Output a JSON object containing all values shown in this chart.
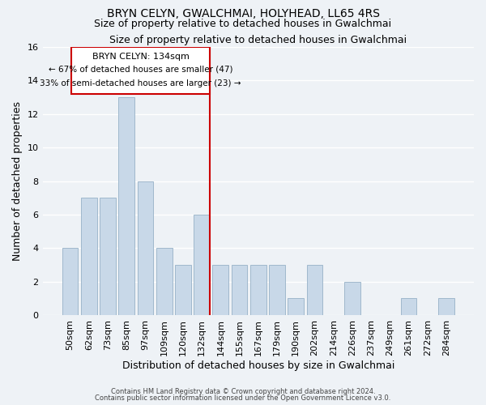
{
  "title": "BRYN CELYN, GWALCHMAI, HOLYHEAD, LL65 4RS",
  "subtitle": "Size of property relative to detached houses in Gwalchmai",
  "xlabel": "Distribution of detached houses by size in Gwalchmai",
  "ylabel": "Number of detached properties",
  "bar_labels": [
    "50sqm",
    "62sqm",
    "73sqm",
    "85sqm",
    "97sqm",
    "109sqm",
    "120sqm",
    "132sqm",
    "144sqm",
    "155sqm",
    "167sqm",
    "179sqm",
    "190sqm",
    "202sqm",
    "214sqm",
    "226sqm",
    "237sqm",
    "249sqm",
    "261sqm",
    "272sqm",
    "284sqm"
  ],
  "bar_values": [
    4,
    7,
    7,
    13,
    8,
    4,
    3,
    6,
    3,
    3,
    3,
    3,
    1,
    3,
    0,
    2,
    0,
    0,
    1,
    0,
    1
  ],
  "bar_color": "#c8d8e8",
  "bar_edge_color": "#a0b8cc",
  "reference_line_index": 7,
  "reference_line_color": "#cc0000",
  "annotation_title": "BRYN CELYN: 134sqm",
  "annotation_line1": "← 67% of detached houses are smaller (47)",
  "annotation_line2": "33% of semi-detached houses are larger (23) →",
  "annotation_box_color": "#ffffff",
  "annotation_box_edge": "#cc0000",
  "ylim": [
    0,
    16
  ],
  "yticks": [
    0,
    2,
    4,
    6,
    8,
    10,
    12,
    14,
    16
  ],
  "footer1": "Contains HM Land Registry data © Crown copyright and database right 2024.",
  "footer2": "Contains public sector information licensed under the Open Government Licence v3.0.",
  "background_color": "#eef2f6",
  "grid_color": "#ffffff",
  "title_fontsize": 10,
  "subtitle_fontsize": 9,
  "axis_label_fontsize": 9,
  "tick_fontsize": 8
}
